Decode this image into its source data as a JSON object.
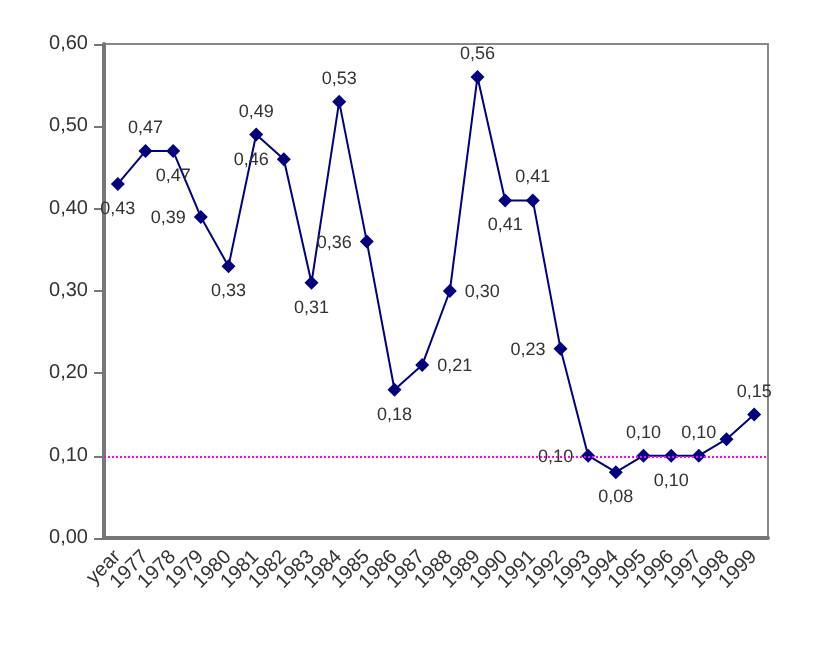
{
  "chart_data": {
    "type": "line",
    "categories": [
      "year",
      "1977",
      "1978",
      "1979",
      "1980",
      "1981",
      "1982",
      "1983",
      "1984",
      "1985",
      "1986",
      "1987",
      "1988",
      "1989",
      "1990",
      "1991",
      "1992",
      "1993",
      "1994",
      "1995",
      "1996",
      "1997",
      "1998",
      "1999"
    ],
    "series": [
      {
        "color": "#000080",
        "values": [
          0.43,
          0.47,
          0.47,
          0.39,
          0.33,
          0.49,
          0.46,
          0.31,
          0.53,
          0.36,
          0.18,
          0.21,
          0.3,
          0.56,
          0.41,
          0.41,
          0.23,
          0.1,
          0.08,
          0.1,
          0.1,
          0.1,
          0.12,
          0.15
        ],
        "value_labels": [
          "0,43",
          "0,47",
          "0,47",
          "0,39",
          "0,33",
          "0,49",
          "0,46",
          "0,31",
          "0,53",
          "0,36",
          "0,18",
          "0,21",
          "0,30",
          "0,56",
          "0,41",
          "0,41",
          "0,23",
          "0,10",
          "0,08",
          "0,10",
          "0,10",
          "0,10",
          null,
          "0,15"
        ]
      }
    ],
    "ylim": [
      0,
      0.6
    ],
    "yticks": [
      {
        "value": 0,
        "label": "0,00"
      },
      {
        "value": 0.1,
        "label": "0,10"
      },
      {
        "value": 0.2,
        "label": "0,20"
      },
      {
        "value": 0.3,
        "label": "0,30"
      },
      {
        "value": 0.4,
        "label": "0,40"
      },
      {
        "value": 0.5,
        "label": "0,50"
      },
      {
        "value": 0.6,
        "label": "0,60"
      }
    ],
    "grid": false,
    "marker": "diamond",
    "line_style": "solid",
    "ref_lines": [
      {
        "axis": "y",
        "value": 0.1,
        "color": "#ff00ff",
        "line_style": "dotted"
      }
    ]
  }
}
